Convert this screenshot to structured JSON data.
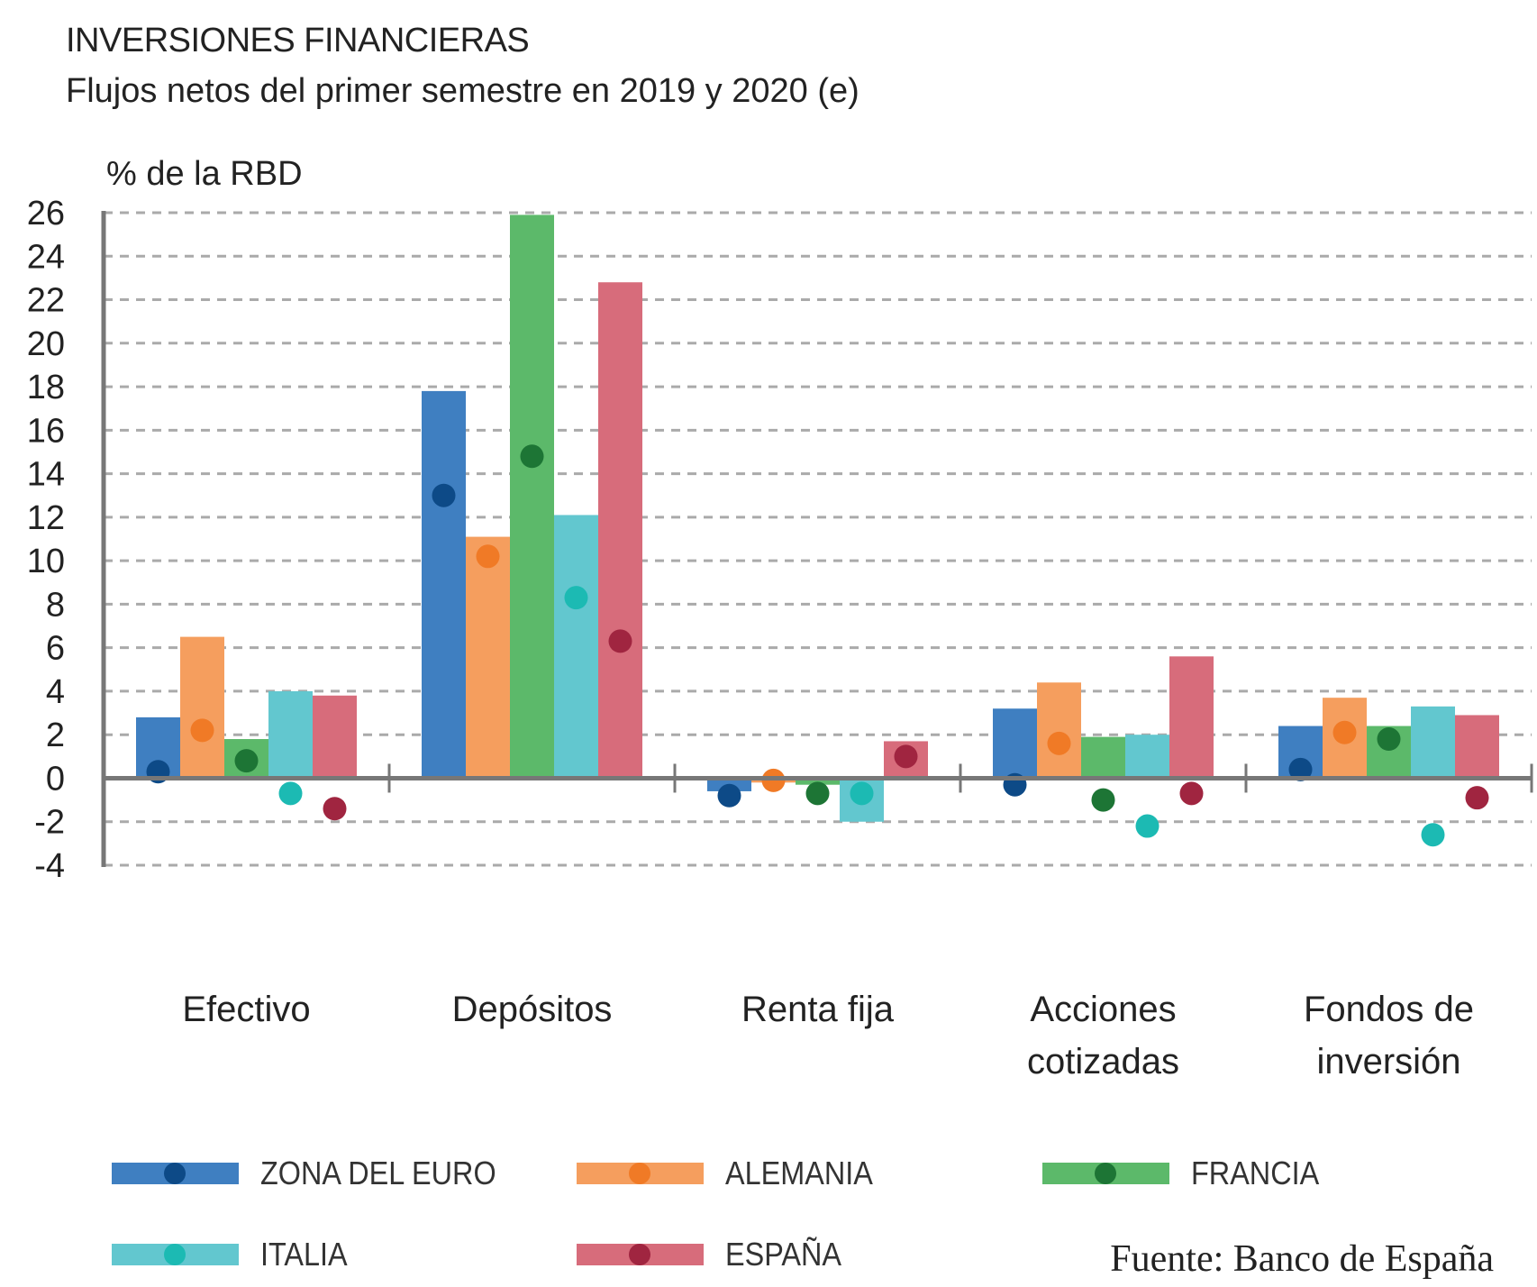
{
  "chart_data": {
    "type": "bar",
    "title": "INVERSIONES FINANCIERAS",
    "subtitle": "Flujos netos del primer semestre en 2019 y 2020 (e)",
    "ylabel": "% de la RBD",
    "ylim": [
      -4,
      26
    ],
    "yticks": [
      "26",
      "24",
      "22",
      "20",
      "18",
      "16",
      "14",
      "12",
      "10",
      "8",
      "6",
      "4",
      "2",
      "0",
      "-2",
      "-4"
    ],
    "grid": true,
    "legend_position": "bottom",
    "categories": [
      [
        "Efectivo"
      ],
      [
        "Depósitos"
      ],
      [
        "Renta fija"
      ],
      [
        "Acciones",
        "cotizadas"
      ],
      [
        "Fondos de",
        "inversión"
      ]
    ],
    "series": [
      {
        "name": "ZONA DEL EURO",
        "bar_color": "#3f7fc1",
        "dot_color": "#0d4a87",
        "bars": [
          2.8,
          17.8,
          -0.6,
          3.2,
          2.4
        ],
        "dots": [
          0.3,
          13.0,
          -0.8,
          -0.3,
          0.4
        ]
      },
      {
        "name": "ALEMANIA",
        "bar_color": "#f59e5e",
        "dot_color": "#f07a26",
        "bars": [
          6.5,
          11.1,
          -0.2,
          4.4,
          3.7
        ],
        "dots": [
          2.2,
          10.2,
          -0.1,
          1.6,
          2.1
        ]
      },
      {
        "name": "FRANCIA",
        "bar_color": "#5cb96a",
        "dot_color": "#1d7535",
        "bars": [
          1.8,
          25.9,
          -0.3,
          1.9,
          2.4
        ],
        "dots": [
          0.8,
          14.8,
          -0.7,
          -1.0,
          1.8
        ]
      },
      {
        "name": "ITALIA",
        "bar_color": "#62c7cf",
        "dot_color": "#1cbab3",
        "bars": [
          4.0,
          12.1,
          -2.0,
          2.0,
          3.3
        ],
        "dots": [
          -0.7,
          8.3,
          -0.7,
          -2.2,
          -2.6
        ]
      },
      {
        "name": "ESPAÑA",
        "bar_color": "#d76c7b",
        "dot_color": "#a02540",
        "bars": [
          3.8,
          22.8,
          1.7,
          5.6,
          2.9
        ],
        "dots": [
          -1.4,
          6.3,
          1.0,
          -0.7,
          -0.9
        ]
      }
    ],
    "source": "Fuente: Banco de España"
  }
}
